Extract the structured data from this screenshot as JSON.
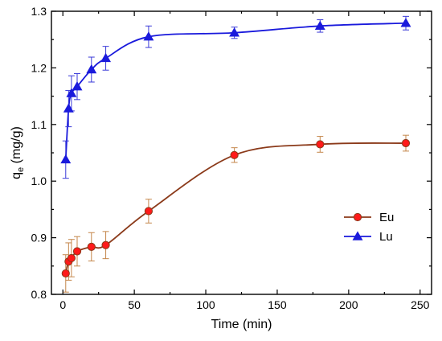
{
  "chart_data": {
    "type": "line",
    "xlabel": "Time (min)",
    "ylabel_main": "q",
    "ylabel_sub": "e",
    "ylabel_unit": " (mg/g)",
    "xlim": [
      -8,
      258
    ],
    "ylim": [
      0.8,
      1.3
    ],
    "x_ticks": [
      "0",
      "50",
      "100",
      "150",
      "200",
      "250"
    ],
    "x_tick_values": [
      0,
      50,
      100,
      150,
      200,
      250
    ],
    "y_ticks": [
      "0.8",
      "0.9",
      "1.0",
      "1.1",
      "1.2",
      "1.3"
    ],
    "y_tick_values": [
      0.8,
      0.9,
      1.0,
      1.1,
      1.2,
      1.3
    ],
    "legend_position": "center-right",
    "series": [
      {
        "name": "Eu",
        "marker": "circle",
        "color": "#ff1a1a",
        "line_color": "#8b3a1a",
        "marker_edge": "#8b3a1a",
        "errorbar_color": "#c4864a",
        "x": [
          2,
          4,
          6,
          10,
          20,
          30,
          60,
          120,
          180,
          240
        ],
        "values": [
          0.837,
          0.858,
          0.864,
          0.876,
          0.884,
          0.887,
          0.947,
          1.046,
          1.065,
          1.067
        ],
        "errors": [
          0.033,
          0.033,
          0.033,
          0.026,
          0.025,
          0.024,
          0.021,
          0.013,
          0.014,
          0.014
        ]
      },
      {
        "name": "Lu",
        "marker": "triangle",
        "color": "#1a1adc",
        "line_color": "#1a1adc",
        "marker_edge": "#1a1adc",
        "errorbar_color": "#3a3ad8",
        "x": [
          2,
          4,
          6,
          10,
          20,
          30,
          60,
          120,
          180,
          240
        ],
        "values": [
          1.038,
          1.128,
          1.155,
          1.167,
          1.197,
          1.217,
          1.255,
          1.262,
          1.274,
          1.279
        ],
        "errors": [
          0.033,
          0.032,
          0.031,
          0.023,
          0.022,
          0.021,
          0.019,
          0.01,
          0.011,
          0.012
        ]
      }
    ]
  }
}
